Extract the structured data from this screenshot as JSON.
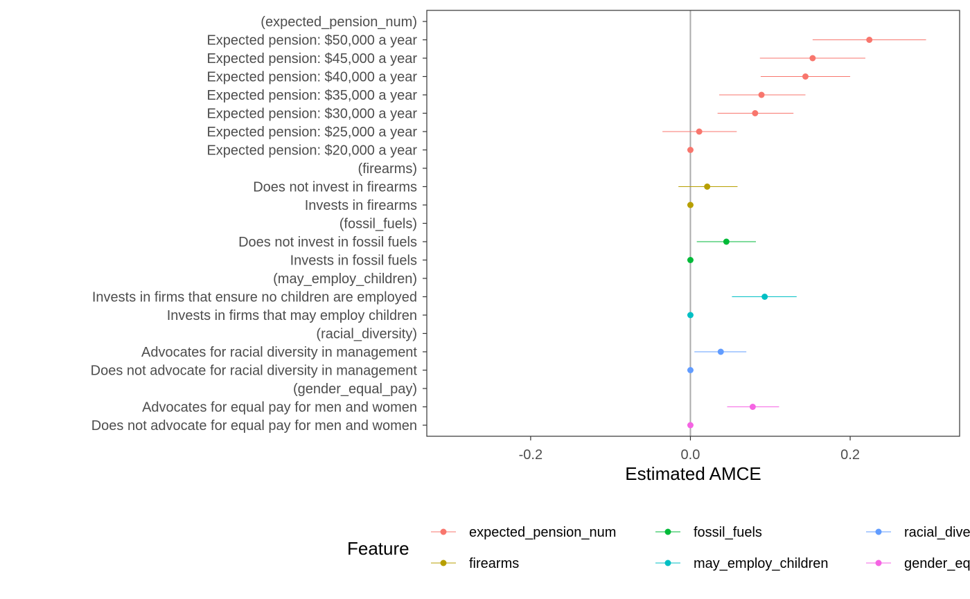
{
  "chart_data": {
    "type": "scatter",
    "subtype": "coefficient-plot",
    "xlabel": "Estimated AMCE",
    "ylabel": "",
    "xlim": [
      -0.33,
      0.337
    ],
    "xticks": [
      -0.2,
      0.0,
      0.2
    ],
    "xtick_labels": [
      "-0.2",
      "0.0",
      "0.2"
    ],
    "reference_line": 0.0,
    "grid": false,
    "legend": {
      "title": "Feature",
      "position": "bottom",
      "entries": [
        {
          "label": "expected_pension_num",
          "color": "#F8766D"
        },
        {
          "label": "firearms",
          "color": "#B79F00"
        },
        {
          "label": "fossil_fuels",
          "color": "#00BA38"
        },
        {
          "label": "may_employ_children",
          "color": "#00BFC4"
        },
        {
          "label": "racial_diversity",
          "color": "#619CFF"
        },
        {
          "label": "gender_equal_pay",
          "color": "#F564E3"
        }
      ]
    },
    "rows": [
      {
        "label": "(expected_pension_num)",
        "feature": "expected_pension_num",
        "estimate": null
      },
      {
        "label": "Expected pension: $50,000 a year",
        "feature": "expected_pension_num",
        "estimate": 0.224,
        "lower": 0.153,
        "upper": 0.295
      },
      {
        "label": "Expected pension: $45,000 a year",
        "feature": "expected_pension_num",
        "estimate": 0.153,
        "lower": 0.087,
        "upper": 0.219
      },
      {
        "label": "Expected pension: $40,000 a year",
        "feature": "expected_pension_num",
        "estimate": 0.144,
        "lower": 0.088,
        "upper": 0.2
      },
      {
        "label": "Expected pension: $35,000 a year",
        "feature": "expected_pension_num",
        "estimate": 0.089,
        "lower": 0.036,
        "upper": 0.144
      },
      {
        "label": "Expected pension: $30,000 a year",
        "feature": "expected_pension_num",
        "estimate": 0.081,
        "lower": 0.034,
        "upper": 0.129
      },
      {
        "label": "Expected pension: $25,000 a year",
        "feature": "expected_pension_num",
        "estimate": 0.011,
        "lower": -0.035,
        "upper": 0.058
      },
      {
        "label": "Expected pension: $20,000 a year",
        "feature": "expected_pension_num",
        "estimate": 0.0
      },
      {
        "label": "(firearms)",
        "feature": "firearms",
        "estimate": null
      },
      {
        "label": "Does not invest in firearms",
        "feature": "firearms",
        "estimate": 0.021,
        "lower": -0.015,
        "upper": 0.059
      },
      {
        "label": "Invests in firearms",
        "feature": "firearms",
        "estimate": 0.0
      },
      {
        "label": "(fossil_fuels)",
        "feature": "fossil_fuels",
        "estimate": null
      },
      {
        "label": "Does not invest in fossil fuels",
        "feature": "fossil_fuels",
        "estimate": 0.045,
        "lower": 0.008,
        "upper": 0.082
      },
      {
        "label": "Invests in fossil fuels",
        "feature": "fossil_fuels",
        "estimate": 0.0
      },
      {
        "label": "(may_employ_children)",
        "feature": "may_employ_children",
        "estimate": null
      },
      {
        "label": "Invests in firms that ensure no children are employed",
        "feature": "may_employ_children",
        "estimate": 0.093,
        "lower": 0.052,
        "upper": 0.133
      },
      {
        "label": "Invests in firms that may employ children",
        "feature": "may_employ_children",
        "estimate": 0.0
      },
      {
        "label": "(racial_diversity)",
        "feature": "racial_diversity",
        "estimate": null
      },
      {
        "label": "Advocates for racial diversity in management",
        "feature": "racial_diversity",
        "estimate": 0.038,
        "lower": 0.005,
        "upper": 0.07
      },
      {
        "label": "Does not advocate for racial diversity in management",
        "feature": "racial_diversity",
        "estimate": 0.0
      },
      {
        "label": "(gender_equal_pay)",
        "feature": "gender_equal_pay",
        "estimate": null
      },
      {
        "label": "Advocates for equal pay for men and women",
        "feature": "gender_equal_pay",
        "estimate": 0.078,
        "lower": 0.046,
        "upper": 0.111
      },
      {
        "label": "Does not advocate for equal pay for men and women",
        "feature": "gender_equal_pay",
        "estimate": 0.0
      }
    ]
  }
}
